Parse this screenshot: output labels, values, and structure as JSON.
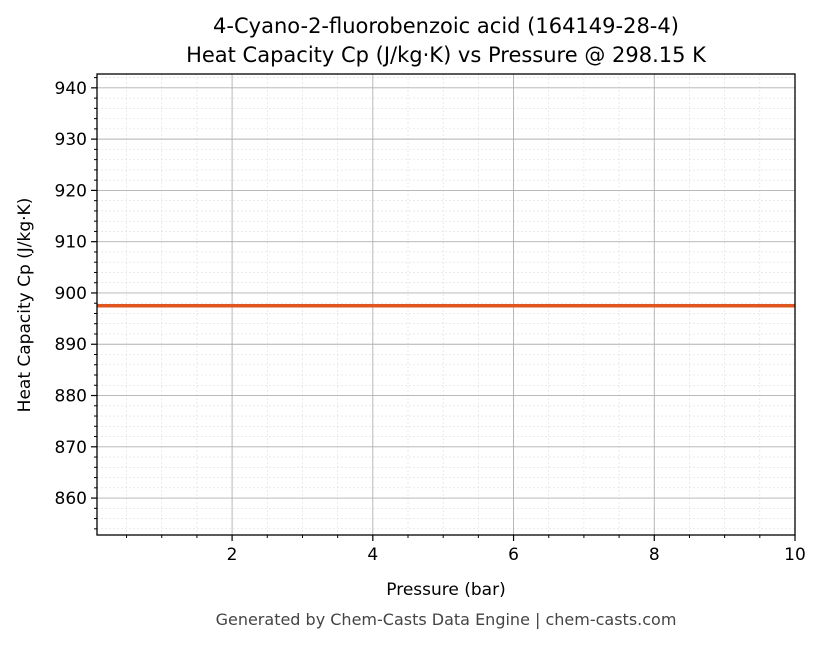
{
  "chart_data": {
    "type": "line",
    "title_line1": "4-Cyano-2-fluorobenzoic acid (164149-28-4)",
    "title_line2": "Heat Capacity Cp (J/kg·K) vs Pressure @ 298.15 K",
    "xlabel": "Pressure (bar)",
    "ylabel": "Heat Capacity Cp (J/kg·K)",
    "xlim": [
      0.08,
      10
    ],
    "ylim": [
      852.8,
      942.7
    ],
    "xticks": [
      2,
      4,
      6,
      8,
      10
    ],
    "yticks": [
      860,
      870,
      880,
      890,
      900,
      910,
      920,
      930,
      940
    ],
    "grid": true,
    "series": [
      {
        "x": [
          0.08,
          10
        ],
        "y": [
          897.5,
          897.5
        ],
        "color": "#e0561f"
      }
    ]
  },
  "footer": "Generated by Chem-Casts Data Engine | chem-casts.com"
}
